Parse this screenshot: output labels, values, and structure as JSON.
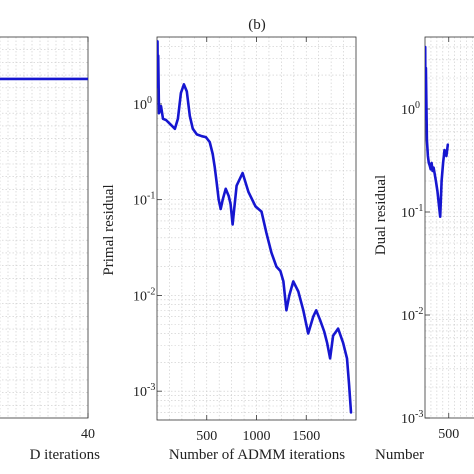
{
  "chart_data": [
    {
      "type": "line",
      "panel_label": "",
      "xlabel": "D iterations",
      "ylabel": "",
      "x_ticks": [
        40
      ],
      "xlim": [
        0,
        40
      ],
      "y_scale": "linear",
      "grid": true,
      "series": [
        {
          "color": "#1616d0",
          "x": [
            0,
            40
          ],
          "y": [
            1,
            1
          ]
        }
      ]
    },
    {
      "type": "line",
      "panel_label": "(b)",
      "xlabel": "Number of ADMM iterations",
      "ylabel": "Primal residual",
      "x_ticks": [
        500,
        1000,
        1500
      ],
      "xlim": [
        0,
        2000
      ],
      "y_scale": "log",
      "ylim": [
        0.0005,
        5
      ],
      "y_tick_labels": [
        {
          "value": 1,
          "base": "10",
          "exp": "0"
        },
        {
          "value": 0.1,
          "base": "10",
          "exp": "-1"
        },
        {
          "value": 0.01,
          "base": "10",
          "exp": "-2"
        },
        {
          "value": 0.001,
          "base": "10",
          "exp": "-3"
        }
      ],
      "grid": true,
      "series": [
        {
          "color": "#1616d0",
          "x": [
            5,
            8,
            12,
            20,
            40,
            60,
            90,
            130,
            180,
            210,
            240,
            270,
            300,
            330,
            360,
            400,
            450,
            490,
            530,
            560,
            580,
            600,
            620,
            640,
            660,
            690,
            720,
            740,
            760,
            800,
            860,
            920,
            990,
            1050,
            1100,
            1150,
            1200,
            1240,
            1270,
            1300,
            1330,
            1370,
            1420,
            1470,
            1520,
            1570,
            1600,
            1640,
            1680,
            1710,
            1740,
            1770,
            1820,
            1870,
            1910,
            1930,
            1950
          ],
          "y": [
            4.5,
            1.5,
            3.2,
            0.8,
            0.95,
            0.7,
            0.68,
            0.62,
            0.55,
            0.7,
            1.3,
            1.6,
            1.35,
            0.75,
            0.55,
            0.48,
            0.46,
            0.45,
            0.4,
            0.3,
            0.22,
            0.15,
            0.1,
            0.08,
            0.1,
            0.13,
            0.11,
            0.09,
            0.055,
            0.14,
            0.19,
            0.12,
            0.085,
            0.075,
            0.045,
            0.028,
            0.02,
            0.018,
            0.014,
            0.007,
            0.01,
            0.014,
            0.011,
            0.007,
            0.004,
            0.006,
            0.007,
            0.0055,
            0.0042,
            0.0032,
            0.0022,
            0.0038,
            0.0045,
            0.0032,
            0.0022,
            0.0012,
            0.0006
          ]
        }
      ]
    },
    {
      "type": "line",
      "panel_label": "",
      "xlabel": "Number",
      "ylabel": "Dual residual",
      "x_ticks": [
        500
      ],
      "xlim": [
        0,
        2000
      ],
      "y_scale": "log",
      "ylim": [
        0.001,
        5
      ],
      "y_tick_labels": [
        {
          "value": 1,
          "base": "10",
          "exp": "0"
        },
        {
          "value": 0.1,
          "base": "10",
          "exp": "-1"
        },
        {
          "value": 0.01,
          "base": "10",
          "exp": "-2"
        },
        {
          "value": 0.001,
          "base": "10",
          "exp": "-3"
        }
      ],
      "grid": true,
      "series": [
        {
          "color": "#1616d0",
          "x": [
            5,
            10,
            20,
            40,
            60,
            80,
            100,
            120,
            140,
            160,
            180,
            200,
            230,
            260,
            290,
            320,
            350,
            380,
            410,
            450,
            480
          ],
          "y": [
            4,
            0.8,
            2.5,
            0.5,
            0.35,
            0.3,
            0.28,
            0.26,
            0.3,
            0.25,
            0.27,
            0.24,
            0.2,
            0.16,
            0.12,
            0.09,
            0.2,
            0.3,
            0.4,
            0.35,
            0.45
          ]
        }
      ]
    }
  ]
}
